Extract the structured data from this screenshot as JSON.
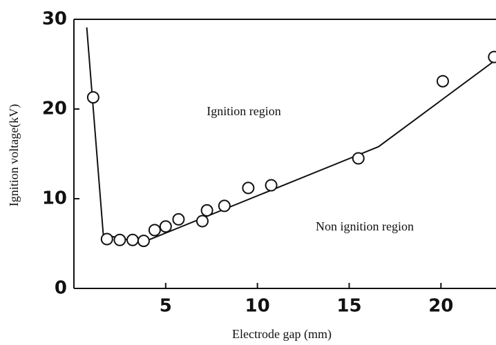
{
  "chart_data": {
    "type": "scatter",
    "x_label": "Electrode gap (mm)",
    "y_label": "Ignition voltage(kV)",
    "annotations": [
      "Ignition region",
      "Non ignition region"
    ],
    "x": [
      1.05,
      1.8,
      2.5,
      3.2,
      3.8,
      4.4,
      5.0,
      5.7,
      7.0,
      7.25,
      8.2,
      9.5,
      10.75,
      15.5,
      20.1,
      22.9
    ],
    "values": [
      21.3,
      5.5,
      5.4,
      5.4,
      5.3,
      6.5,
      6.9,
      7.7,
      7.5,
      8.7,
      9.2,
      11.2,
      11.5,
      14.5,
      23.1,
      25.8
    ],
    "color": "#111111",
    "curve": {
      "x": [
        0.7,
        1.6,
        3.7,
        16.6,
        23
      ],
      "values": [
        29.1,
        6.0,
        5.1,
        15.8,
        25.5
      ],
      "color": "#111111"
    },
    "xlim": [
      0,
      23
    ],
    "xticks": [
      5,
      10,
      15,
      20
    ],
    "ylim": [
      0,
      30
    ],
    "yticks": [
      0,
      10,
      20,
      30
    ]
  }
}
